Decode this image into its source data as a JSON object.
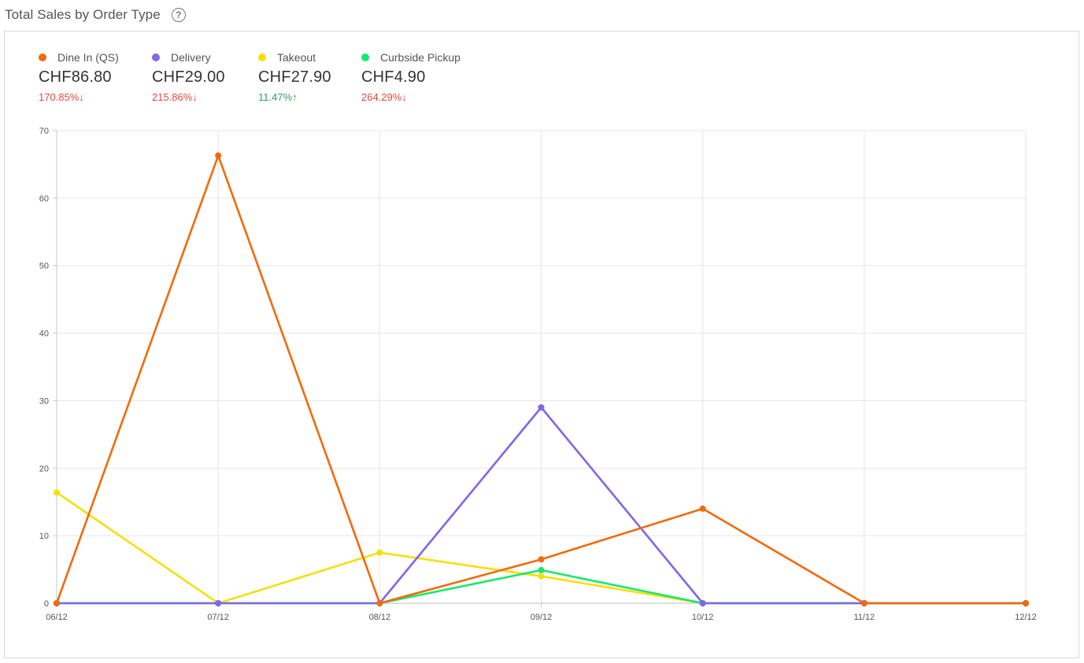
{
  "header": {
    "title": "Total Sales by Order Type",
    "help_icon": "question-circle-icon"
  },
  "legend": [
    {
      "name": "Dine In (QS)",
      "color": "#f26a0a",
      "value": "CHF86.80",
      "change": "170.85%↓",
      "direction": "down"
    },
    {
      "name": "Delivery",
      "color": "#8066e8",
      "value": "CHF29.00",
      "change": "215.86%↓",
      "direction": "down"
    },
    {
      "name": "Takeout",
      "color": "#f7df0b",
      "value": "CHF27.90",
      "change": "11.47%↑",
      "direction": "up"
    },
    {
      "name": "Curbside Pickup",
      "color": "#17e86c",
      "value": "CHF4.90",
      "change": "264.29%↓",
      "direction": "down"
    }
  ],
  "chart_data": {
    "type": "line",
    "categories": [
      "06/12",
      "07/12",
      "08/12",
      "09/12",
      "10/12",
      "11/12",
      "12/12"
    ],
    "ylim": [
      0,
      70
    ],
    "yticks": [
      0,
      10,
      20,
      30,
      40,
      50,
      60,
      70
    ],
    "grid": true,
    "series": [
      {
        "name": "Takeout",
        "color": "#f7df0b",
        "values": [
          16.4,
          0,
          7.5,
          4.0,
          0,
          0,
          0
        ]
      },
      {
        "name": "Curbside Pickup",
        "color": "#17e86c",
        "values": [
          0,
          0,
          0,
          4.9,
          0,
          0,
          0
        ]
      },
      {
        "name": "Delivery",
        "color": "#8066e8",
        "values": [
          0,
          0,
          0,
          29.0,
          0,
          0,
          0
        ]
      },
      {
        "name": "Dine In (QS)",
        "color": "#f26a0a",
        "values": [
          0,
          66.3,
          0,
          6.5,
          14.0,
          0,
          0
        ]
      }
    ]
  }
}
